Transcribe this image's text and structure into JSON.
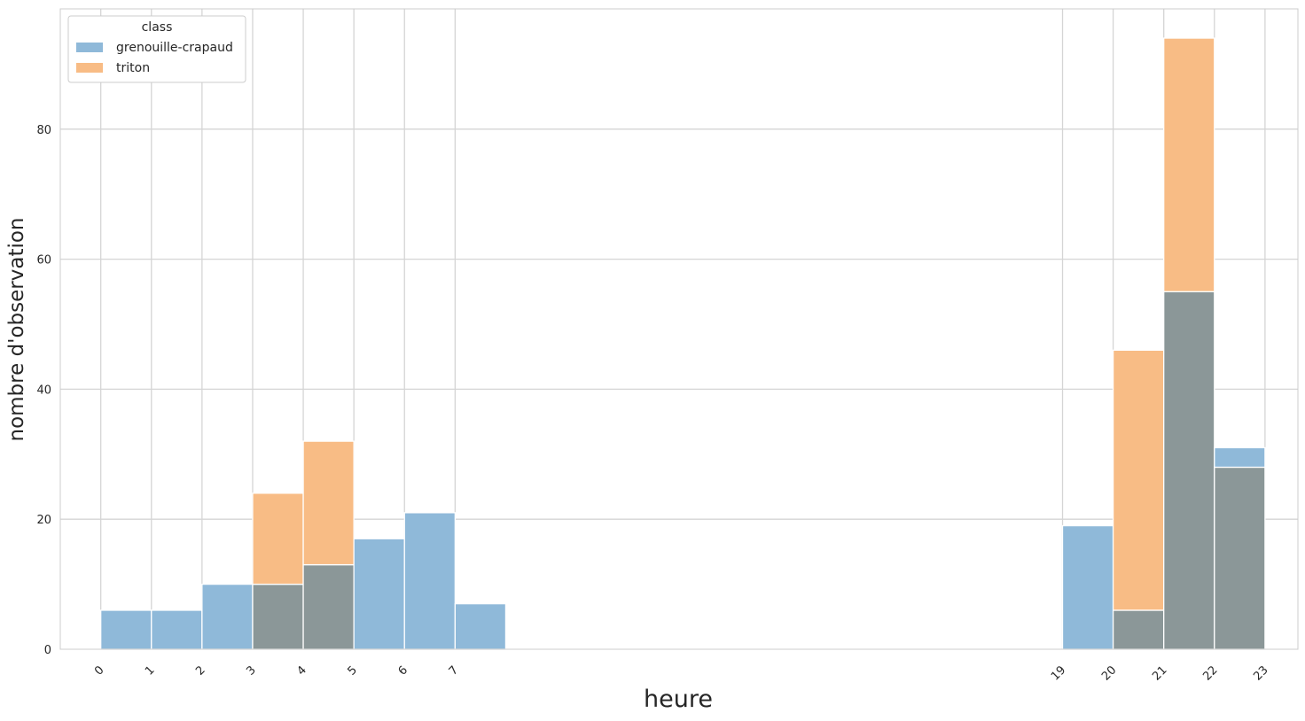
{
  "chart_data": {
    "type": "bar",
    "subtype": "layered-histogram",
    "xlabel": "heure",
    "ylabel": "nombre d'observation",
    "ylim": [
      0,
      98.5
    ],
    "xlim": [
      -0.8,
      23.65
    ],
    "xticks": [
      0,
      1,
      2,
      3,
      4,
      5,
      6,
      7,
      19,
      20,
      21,
      22,
      23
    ],
    "xtick_rotation": 45,
    "yticks": [
      0,
      20,
      40,
      60,
      80
    ],
    "grid": true,
    "legend": {
      "title": "class",
      "placement": "top-left",
      "entries": [
        "grenouille-crapaud",
        "triton"
      ]
    },
    "series": [
      {
        "name": "grenouille-crapaud",
        "color": "#8fb9d9",
        "bins": [
          {
            "x0": 0,
            "x1": 1,
            "value": 6
          },
          {
            "x0": 1,
            "x1": 2,
            "value": 6
          },
          {
            "x0": 2,
            "x1": 3,
            "value": 10
          },
          {
            "x0": 3,
            "x1": 4,
            "value": 10
          },
          {
            "x0": 4,
            "x1": 5,
            "value": 13
          },
          {
            "x0": 5,
            "x1": 6,
            "value": 17
          },
          {
            "x0": 6,
            "x1": 7,
            "value": 21
          },
          {
            "x0": 7,
            "x1": 8,
            "value": 7
          },
          {
            "x0": 19,
            "x1": 20,
            "value": 19
          },
          {
            "x0": 20,
            "x1": 21,
            "value": 6
          },
          {
            "x0": 21,
            "x1": 22,
            "value": 55
          },
          {
            "x0": 22,
            "x1": 23,
            "value": 31
          }
        ]
      },
      {
        "name": "triton",
        "color": "#f8bc85",
        "bins": [
          {
            "x0": 3,
            "x1": 4,
            "value": 24
          },
          {
            "x0": 4,
            "x1": 5,
            "value": 32
          },
          {
            "x0": 20,
            "x1": 21,
            "value": 46
          },
          {
            "x0": 21,
            "x1": 22,
            "value": 94
          },
          {
            "x0": 22,
            "x1": 23,
            "value": 28
          }
        ]
      }
    ],
    "overlap_color": "#8b9798"
  }
}
